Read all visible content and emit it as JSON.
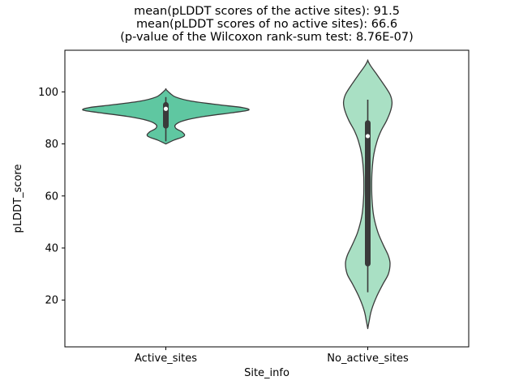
{
  "chart_data": {
    "type": "violin",
    "title_lines": [
      "mean(pLDDT scores of the active sites): 91.5",
      "mean(pLDDT scores of no active sites): 66.6",
      "(p-value of the Wilcoxon rank-sum test: 8.76E-07)"
    ],
    "stats": {
      "mean_active_sites": 91.5,
      "mean_no_active_sites": 66.6,
      "wilcoxon_p_value": "8.76E-07"
    },
    "xlabel": "Site_info",
    "ylabel": "pLDDT_score",
    "categories": [
      "Active_sites",
      "No_active_sites"
    ],
    "xlim": [
      -0.5,
      1.5
    ],
    "ylim": [
      2,
      116
    ],
    "yticks": [
      20,
      40,
      60,
      80,
      100
    ],
    "axis_color": "#000000",
    "edge_color": "#3a3a3a",
    "box_color": "#3a3a3a",
    "median_color": "#ffffff",
    "violins": [
      {
        "category": "Active_sites",
        "x_position": 0,
        "fill": "#5fc7a1",
        "max_halfwidth": 0.41,
        "profile": [
          [
            80.0,
            0.0
          ],
          [
            81.5,
            0.1
          ],
          [
            83.0,
            0.22
          ],
          [
            84.5,
            0.2
          ],
          [
            86.0,
            0.12
          ],
          [
            87.5,
            0.12
          ],
          [
            89.0,
            0.22
          ],
          [
            90.5,
            0.45
          ],
          [
            92.0,
            0.8
          ],
          [
            93.0,
            1.0
          ],
          [
            94.0,
            0.92
          ],
          [
            95.0,
            0.65
          ],
          [
            96.5,
            0.3
          ],
          [
            98.0,
            0.12
          ],
          [
            99.5,
            0.05
          ],
          [
            101.0,
            0.0
          ]
        ],
        "box": {
          "whisker_low": 81,
          "q1": 87,
          "median": 93.5,
          "q3": 95,
          "whisker_high": 98
        }
      },
      {
        "category": "No_active_sites",
        "x_position": 1,
        "fill": "#a9e0c4",
        "max_halfwidth": 0.12,
        "profile": [
          [
            9.0,
            0.0
          ],
          [
            12.0,
            0.06
          ],
          [
            16.0,
            0.15
          ],
          [
            21.0,
            0.35
          ],
          [
            26.0,
            0.62
          ],
          [
            30.0,
            0.85
          ],
          [
            34.0,
            0.92
          ],
          [
            37.0,
            0.85
          ],
          [
            41.0,
            0.65
          ],
          [
            46.0,
            0.42
          ],
          [
            52.0,
            0.25
          ],
          [
            58.0,
            0.18
          ],
          [
            64.0,
            0.16
          ],
          [
            70.0,
            0.18
          ],
          [
            76.0,
            0.25
          ],
          [
            81.0,
            0.38
          ],
          [
            85.0,
            0.55
          ],
          [
            89.0,
            0.78
          ],
          [
            93.0,
            0.95
          ],
          [
            96.0,
            1.0
          ],
          [
            99.0,
            0.92
          ],
          [
            103.0,
            0.65
          ],
          [
            107.0,
            0.35
          ],
          [
            110.0,
            0.12
          ],
          [
            112.0,
            0.0
          ]
        ],
        "box": {
          "whisker_low": 23,
          "q1": 34,
          "median": 83,
          "q3": 88,
          "whisker_high": 97
        }
      }
    ]
  }
}
